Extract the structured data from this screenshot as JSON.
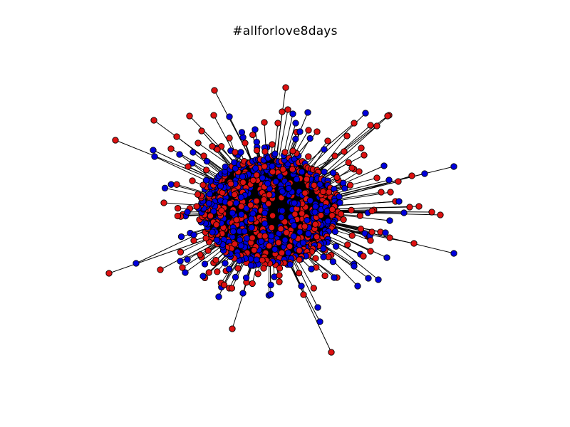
{
  "figure": {
    "title": "#allforlove8days"
  },
  "colors": {
    "background": "#ffffff",
    "edge": "#000000",
    "node_outline": "#000000",
    "group_a": "#0000dd",
    "group_b": "#dd1111"
  },
  "chart_data": {
    "type": "network",
    "title": "#allforlove8days",
    "description_visual": "dense core of overlapping nodes with radial spokes to peripheral nodes",
    "node_groups": [
      "group_a",
      "group_b"
    ],
    "node_colors": {
      "group_a": "blue",
      "group_b": "red"
    },
    "axes": "off",
    "legend": "none"
  }
}
